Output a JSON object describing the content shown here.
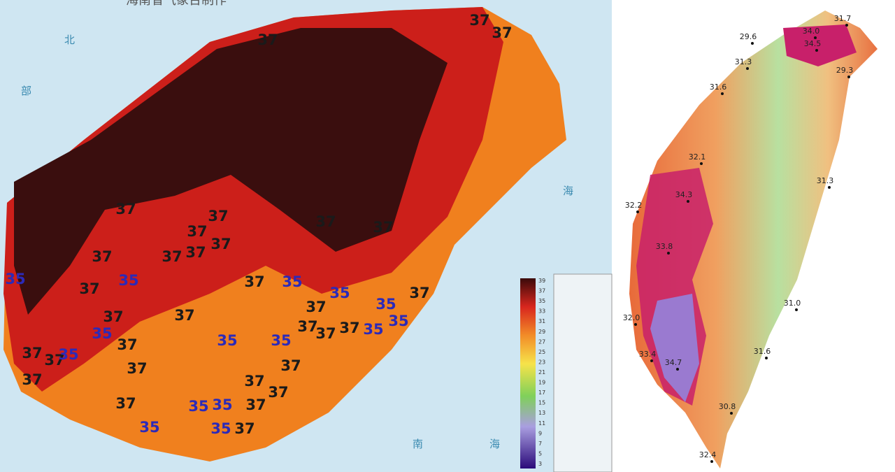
{
  "left_map": {
    "title": "海南省气象台制作",
    "isotherm_labels_37": [
      "37",
      "37",
      "37",
      "37",
      "37",
      "37",
      "37",
      "37",
      "37",
      "37",
      "37",
      "37",
      "37",
      "37",
      "37",
      "37",
      "37",
      "37",
      "37",
      "37",
      "37",
      "37",
      "37",
      "37",
      "37",
      "37",
      "37",
      "37",
      "37",
      "37",
      "37",
      "37"
    ],
    "isotherm_labels_35": [
      "35",
      "35",
      "35",
      "35",
      "35",
      "35",
      "35",
      "35",
      "35",
      "35",
      "35",
      "35",
      "35",
      "35",
      "35"
    ],
    "colorbar_ticks": [
      "39",
      "37",
      "35",
      "33",
      "31",
      "29",
      "27",
      "25",
      "23",
      "21",
      "19",
      "17",
      "15",
      "13",
      "11",
      "9",
      "7",
      "5",
      "3"
    ],
    "sea_labels": [
      "北",
      "部",
      "海",
      "南",
      "海"
    ]
  },
  "right_map": {
    "station_temps": [
      "31.7",
      "34.0",
      "34.5",
      "29.6",
      "31.3",
      "29.3",
      "31.6",
      "32.1",
      "31.3",
      "34.3",
      "32.2",
      "33.8",
      "31.0",
      "32.0",
      "31.6",
      "33.4",
      "34.7",
      "30.8",
      "32.4"
    ]
  }
}
